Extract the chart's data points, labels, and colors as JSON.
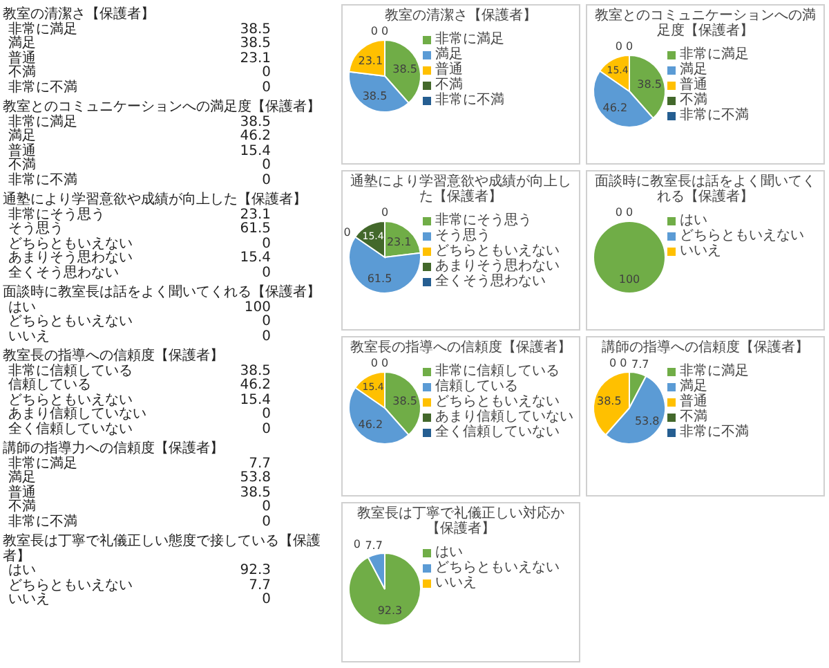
{
  "chart_data": [
    {
      "type": "other",
      "title": "教室の清潔さ【保護者】",
      "categories": [
        "非常に満足",
        "満足",
        "普通",
        "不満",
        "非常に不満"
      ],
      "values": [
        38.5,
        38.5,
        23.1,
        0,
        0
      ],
      "data_labels": true
    },
    {
      "type": "other",
      "title": "教室とのコミュニケーションへの満足度【保護者】",
      "categories": [
        "非常に満足",
        "満足",
        "普通",
        "不満",
        "非常に不満"
      ],
      "values": [
        38.5,
        46.2,
        15.4,
        0,
        0
      ],
      "data_labels": true
    },
    {
      "type": "other",
      "title": "通塾により学習意欲や成績が向上した【保護者】",
      "categories": [
        "非常にそう思う",
        "そう思う",
        "どちらともいえない",
        "あまりそう思わない",
        "全くそう思わない"
      ],
      "values": [
        23.1,
        61.5,
        0,
        15.4,
        0
      ],
      "data_labels": true
    },
    {
      "type": "other",
      "title": "面談時に教室長は話をよく聞いてくれる【保護者】",
      "categories": [
        "はい",
        "どちらともいえない",
        "いいえ"
      ],
      "values": [
        100,
        0,
        0
      ],
      "data_labels": true
    },
    {
      "type": "other",
      "title": "教室長の指導への信頼度【保護者】",
      "categories": [
        "非常に信頼している",
        "信頼している",
        "どちらともいえない",
        "あまり信頼していない",
        "全く信頼していない"
      ],
      "values": [
        38.5,
        46.2,
        15.4,
        0,
        0
      ],
      "data_labels": true
    },
    {
      "type": "other",
      "title": "講師の指導力への信頼度【保護者】",
      "categories": [
        "非常に満足",
        "満足",
        "普通",
        "不満",
        "非常に不満"
      ],
      "values": [
        7.7,
        53.8,
        38.5,
        0,
        0
      ],
      "data_labels": true
    },
    {
      "type": "other",
      "title": "教室長は丁寧で礼儀正しい態度で接している【保護者】",
      "categories": [
        "はい",
        "どちらともいえない",
        "いいえ"
      ],
      "values": [
        92.3,
        7.7,
        0
      ],
      "data_labels": true
    },
    {
      "type": "pie",
      "title": "教室の清潔さ【保護者】",
      "categories": [
        "非常に満足",
        "満足",
        "普通",
        "不満",
        "非常に不満"
      ],
      "values": [
        38.5,
        38.5,
        23.1,
        0,
        0
      ],
      "value_labels": [
        "38.5",
        "38.5",
        "23.1",
        "0",
        "0"
      ],
      "colors": [
        "#70ad47",
        "#5b9bd5",
        "#ffc000",
        "#43682b",
        "#255e91"
      ],
      "legend": "right"
    },
    {
      "type": "pie",
      "title": "教室とのコミュニケーションへの満足度【保護者】",
      "categories": [
        "非常に満足",
        "満足",
        "普通",
        "不満",
        "非常に不満"
      ],
      "values": [
        38.5,
        46.2,
        15.4,
        0,
        0
      ],
      "value_labels": [
        "38.5",
        "46.2",
        "15.4",
        "0",
        "0"
      ],
      "colors": [
        "#70ad47",
        "#5b9bd5",
        "#ffc000",
        "#43682b",
        "#255e91"
      ],
      "legend": "right"
    },
    {
      "type": "pie",
      "title": "通塾により学習意欲や成績が向上した【保護者】",
      "categories": [
        "非常にそう思う",
        "そう思う",
        "どちらともいえない",
        "あまりそう思わない",
        "全くそう思わない"
      ],
      "values": [
        23.1,
        61.5,
        0,
        15.4,
        0
      ],
      "value_labels": [
        "23.1",
        "61.5",
        "0",
        "15.4",
        "0"
      ],
      "colors": [
        "#70ad47",
        "#5b9bd5",
        "#ffc000",
        "#43682b",
        "#255e91"
      ],
      "legend": "right"
    },
    {
      "type": "pie",
      "title": "面談時に教室長は話をよく聞いてくれる【保護者】",
      "categories": [
        "はい",
        "どちらともいえない",
        "いいえ"
      ],
      "values": [
        100,
        0,
        0
      ],
      "value_labels": [
        "100",
        "0",
        "0"
      ],
      "colors": [
        "#70ad47",
        "#5b9bd5",
        "#ffc000"
      ],
      "legend": "right"
    },
    {
      "type": "pie",
      "title": "教室長の指導への信頼度【保護者】",
      "categories": [
        "非常に信頼している",
        "信頼している",
        "どちらともいえない",
        "あまり信頼していない",
        "全く信頼していない"
      ],
      "values": [
        38.5,
        46.2,
        15.4,
        0,
        0
      ],
      "value_labels": [
        "38.5",
        "46.2",
        "15.4",
        "0",
        "0"
      ],
      "colors": [
        "#70ad47",
        "#5b9bd5",
        "#ffc000",
        "#43682b",
        "#255e91"
      ],
      "legend": "right"
    },
    {
      "type": "pie",
      "title": "講師の指導への信頼度【保護者】",
      "categories": [
        "非常に満足",
        "満足",
        "普通",
        "不満",
        "非常に不満"
      ],
      "values": [
        7.7,
        53.8,
        38.5,
        0,
        0
      ],
      "value_labels": [
        "7.7",
        "53.8",
        "38.5",
        "0",
        "0"
      ],
      "colors": [
        "#70ad47",
        "#5b9bd5",
        "#ffc000",
        "#43682b",
        "#255e91"
      ],
      "legend": "right"
    },
    {
      "type": "pie",
      "title": "教室長は丁寧で礼儀正しい対応か【保護者】",
      "categories": [
        "はい",
        "どちらともいえない",
        "いいえ"
      ],
      "values": [
        92.3,
        7.7,
        0
      ],
      "value_labels": [
        "92.3",
        "7.7",
        "0"
      ],
      "colors": [
        "#70ad47",
        "#5b9bd5",
        "#ffc000"
      ],
      "legend": "right"
    }
  ]
}
